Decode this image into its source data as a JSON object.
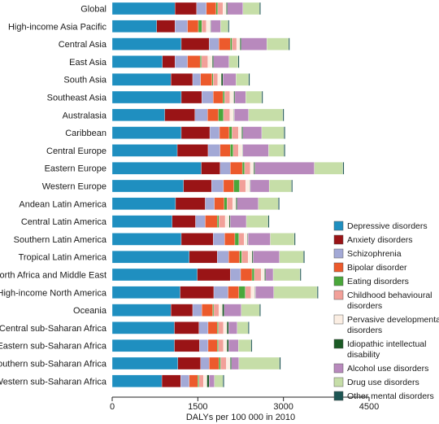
{
  "chart_data": {
    "type": "bar",
    "orientation": "horizontal",
    "stacked": true,
    "title": "",
    "xlabel": "DALYs per 100 000 in 2010",
    "ylabel": "",
    "xlim": [
      0,
      4500
    ],
    "xticks": [
      0,
      1500,
      3000,
      4500
    ],
    "xtick_labels": [
      "0",
      "1500",
      "3000",
      "4500"
    ],
    "grid": false,
    "legend_position": "right",
    "categories": [
      "Global",
      "High-income Asia Pacific",
      "Central Asia",
      "East Asia",
      "South Asia",
      "Southeast Asia",
      "Australasia",
      "Caribbean",
      "Central Europe",
      "Eastern Europe",
      "Western Europe",
      "Andean Latin America",
      "Central Latin America",
      "Southern Latin America",
      "Tropical Latin America",
      "North Africa and Middle East",
      "High-income North America",
      "Oceania",
      "Central sub-Saharan Africa",
      "Eastern sub-Saharan Africa",
      "Southern sub-Saharan Africa",
      "Western sub-Saharan Africa"
    ],
    "series": [
      {
        "name": "Depressive disorders",
        "color": "#1f8fc0",
        "values": [
          1100,
          780,
          1210,
          880,
          1030,
          1210,
          920,
          1210,
          1140,
          1560,
          1250,
          1110,
          1050,
          1210,
          1350,
          1490,
          1190,
          1030,
          1090,
          1090,
          1150,
          870
        ]
      },
      {
        "name": "Anxiety disorders",
        "color": "#9a1416",
        "values": [
          380,
          320,
          490,
          220,
          380,
          360,
          530,
          500,
          540,
          330,
          490,
          520,
          410,
          560,
          490,
          580,
          590,
          380,
          430,
          440,
          400,
          330
        ]
      },
      {
        "name": "Schizophrenia",
        "color": "#a3a9d6",
        "values": [
          170,
          220,
          170,
          220,
          140,
          200,
          220,
          170,
          210,
          180,
          210,
          160,
          170,
          200,
          200,
          180,
          250,
          160,
          160,
          150,
          150,
          150
        ]
      },
      {
        "name": "Bipolar disorder",
        "color": "#ec5a2c",
        "values": [
          170,
          190,
          200,
          220,
          200,
          170,
          190,
          170,
          180,
          210,
          180,
          170,
          210,
          180,
          190,
          200,
          190,
          190,
          160,
          160,
          170,
          150
        ]
      },
      {
        "name": "Eating disorders",
        "color": "#4aa73b",
        "values": [
          30,
          60,
          30,
          25,
          20,
          30,
          90,
          50,
          50,
          40,
          100,
          50,
          30,
          70,
          40,
          40,
          110,
          20,
          20,
          20,
          30,
          20
        ]
      },
      {
        "name": "Childhood behavioural disorders",
        "color": "#f2a099",
        "values": [
          90,
          80,
          80,
          110,
          80,
          90,
          110,
          110,
          90,
          100,
          110,
          100,
          110,
          90,
          110,
          120,
          100,
          90,
          90,
          90,
          100,
          80
        ]
      },
      {
        "name": "Pervasive developmental disorders",
        "color": "#fbeee3",
        "values": [
          60,
          70,
          60,
          80,
          60,
          70,
          70,
          60,
          70,
          60,
          70,
          60,
          70,
          60,
          70,
          60,
          70,
          60,
          60,
          60,
          70,
          60
        ]
      },
      {
        "name": "Idiopathic intellectual disability",
        "color": "#1a5a25",
        "values": [
          20,
          10,
          20,
          20,
          30,
          20,
          10,
          20,
          10,
          20,
          10,
          20,
          20,
          10,
          20,
          20,
          10,
          30,
          30,
          30,
          20,
          40
        ]
      },
      {
        "name": "Alcohol use disorders",
        "color": "#b889bd",
        "values": [
          270,
          170,
          450,
          270,
          230,
          190,
          250,
          330,
          450,
          1040,
          330,
          370,
          280,
          390,
          460,
          130,
          320,
          300,
          150,
          170,
          130,
          90
        ]
      },
      {
        "name": "Drug use disorders",
        "color": "#c6dea8",
        "values": [
          290,
          130,
          380,
          160,
          220,
          280,
          600,
          390,
          270,
          500,
          390,
          350,
          380,
          420,
          420,
          470,
          760,
          320,
          190,
          220,
          710,
          150
        ]
      },
      {
        "name": "Other mental disorders",
        "color": "#1d5553",
        "values": [
          20,
          20,
          20,
          20,
          20,
          20,
          20,
          20,
          20,
          20,
          20,
          20,
          20,
          20,
          20,
          20,
          20,
          20,
          20,
          20,
          20,
          20
        ]
      }
    ]
  }
}
